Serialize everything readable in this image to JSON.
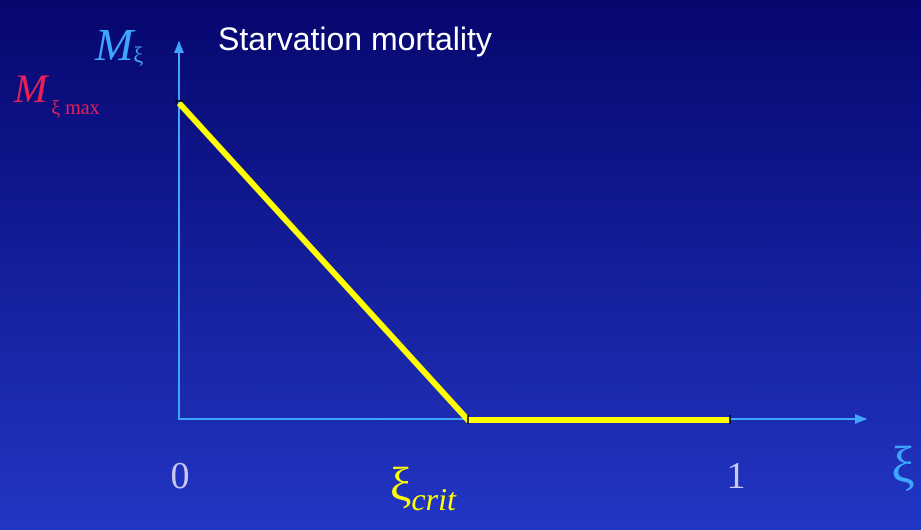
{
  "title": "Starvation mortality",
  "y_axis": {
    "label": "M",
    "subscript": "ξ"
  },
  "y_tick": {
    "label": "M",
    "subscript": "ξ max"
  },
  "x_ticks": [
    {
      "label": "0"
    },
    {
      "label": "ξ",
      "subscript": "crit"
    },
    {
      "label": "1"
    }
  ],
  "x_axis": {
    "label": "ξ"
  }
}
